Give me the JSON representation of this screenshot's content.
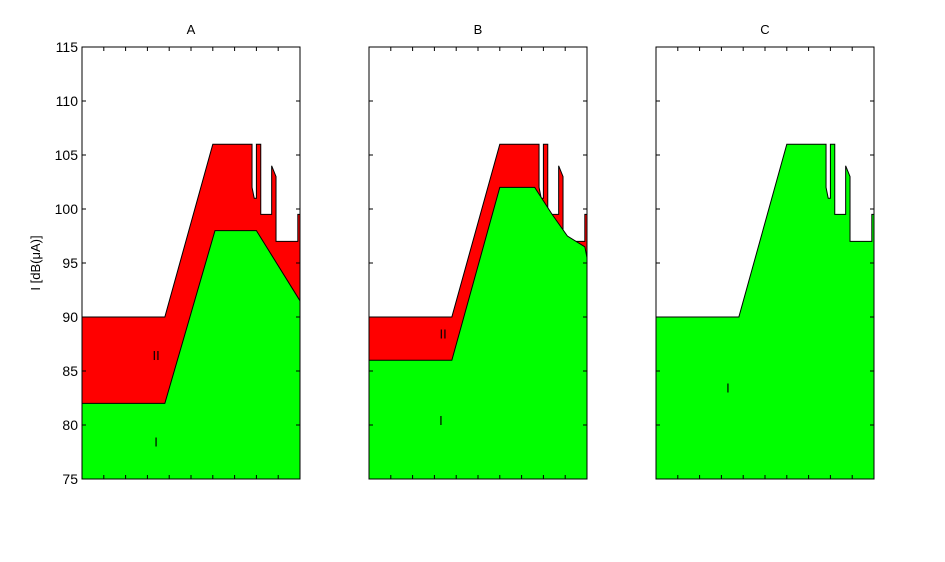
{
  "figure": {
    "ylabel": "I [dB(μA)]",
    "colors": {
      "region_I": "#00ff00",
      "region_II": "#ff0000",
      "axes": "#000000",
      "background": "#ffffff"
    },
    "yticks": [
      75,
      80,
      85,
      90,
      95,
      100,
      105,
      110,
      115
    ]
  },
  "chart_data": [
    {
      "type": "area",
      "title": "A",
      "ylim": [
        75,
        115
      ],
      "xlim": [
        0,
        1
      ],
      "region_labels": [
        {
          "text": "II",
          "x": 0.34,
          "y": 86
        },
        {
          "text": "I",
          "x": 0.34,
          "y": 78
        }
      ],
      "series": [
        {
          "name": "I",
          "color": "#00ff00",
          "x": [
            0,
            0.38,
            0.61,
            0.8,
            1.0
          ],
          "y": [
            82,
            82,
            98,
            98,
            91.5
          ]
        },
        {
          "name": "II",
          "color": "#ff0000",
          "x": [
            0,
            0.38,
            0.6,
            0.76,
            0.77,
            0.78,
            0.78,
            0.79,
            0.8,
            0.8,
            0.82,
            0.82,
            0.87,
            0.87,
            0.88,
            0.89,
            0.89,
            0.9,
            0.9,
            0.91,
            0.91,
            0.97,
            0.97,
            0.99,
            0.99,
            1.0
          ],
          "y": [
            90,
            90,
            106,
            106,
            106,
            106,
            102,
            101,
            101,
            106,
            106,
            99.5,
            99.5,
            104,
            103.5,
            103,
            97,
            97,
            97,
            97,
            97,
            97,
            97,
            97,
            99.5,
            99.5
          ]
        }
      ]
    },
    {
      "type": "area",
      "title": "B",
      "ylim": [
        75,
        115
      ],
      "xlim": [
        0,
        1
      ],
      "region_labels": [
        {
          "text": "II",
          "x": 0.34,
          "y": 88
        },
        {
          "text": "I",
          "x": 0.33,
          "y": 80
        }
      ],
      "series": [
        {
          "name": "I",
          "color": "#00ff00",
          "x": [
            0,
            0.38,
            0.6,
            0.76,
            0.84,
            0.91,
            0.99,
            1.0
          ],
          "y": [
            86,
            86,
            102,
            102,
            99.5,
            97.5,
            96.5,
            95.5
          ]
        },
        {
          "name": "II",
          "color": "#ff0000",
          "x": [
            0,
            0.38,
            0.6,
            0.76,
            0.77,
            0.78,
            0.78,
            0.79,
            0.8,
            0.8,
            0.82,
            0.82,
            0.87,
            0.87,
            0.88,
            0.89,
            0.89,
            0.9,
            0.9,
            0.91,
            0.91,
            0.97,
            0.97,
            0.99,
            0.99,
            1.0
          ],
          "y": [
            90,
            90,
            106,
            106,
            106,
            106,
            102,
            101,
            101,
            106,
            106,
            99.5,
            99.5,
            104,
            103.5,
            103,
            97,
            97,
            97,
            97,
            97,
            97,
            97,
            97,
            99.5,
            99.5
          ]
        }
      ]
    },
    {
      "type": "area",
      "title": "C",
      "ylim": [
        75,
        115
      ],
      "xlim": [
        0,
        1
      ],
      "region_labels": [
        {
          "text": "I",
          "x": 0.33,
          "y": 83
        }
      ],
      "series": [
        {
          "name": "I",
          "color": "#00ff00",
          "x": [
            0,
            0.38,
            0.6,
            0.76,
            0.77,
            0.78,
            0.78,
            0.79,
            0.8,
            0.8,
            0.82,
            0.82,
            0.87,
            0.87,
            0.88,
            0.89,
            0.89,
            0.9,
            0.9,
            0.91,
            0.91,
            0.97,
            0.97,
            0.99,
            0.99,
            1.0
          ],
          "y": [
            90,
            90,
            106,
            106,
            106,
            106,
            102,
            101,
            101,
            106,
            106,
            99.5,
            99.5,
            104,
            103.5,
            103,
            97,
            97,
            97,
            97,
            97,
            97,
            97,
            97,
            99.5,
            99.5
          ]
        }
      ]
    }
  ]
}
